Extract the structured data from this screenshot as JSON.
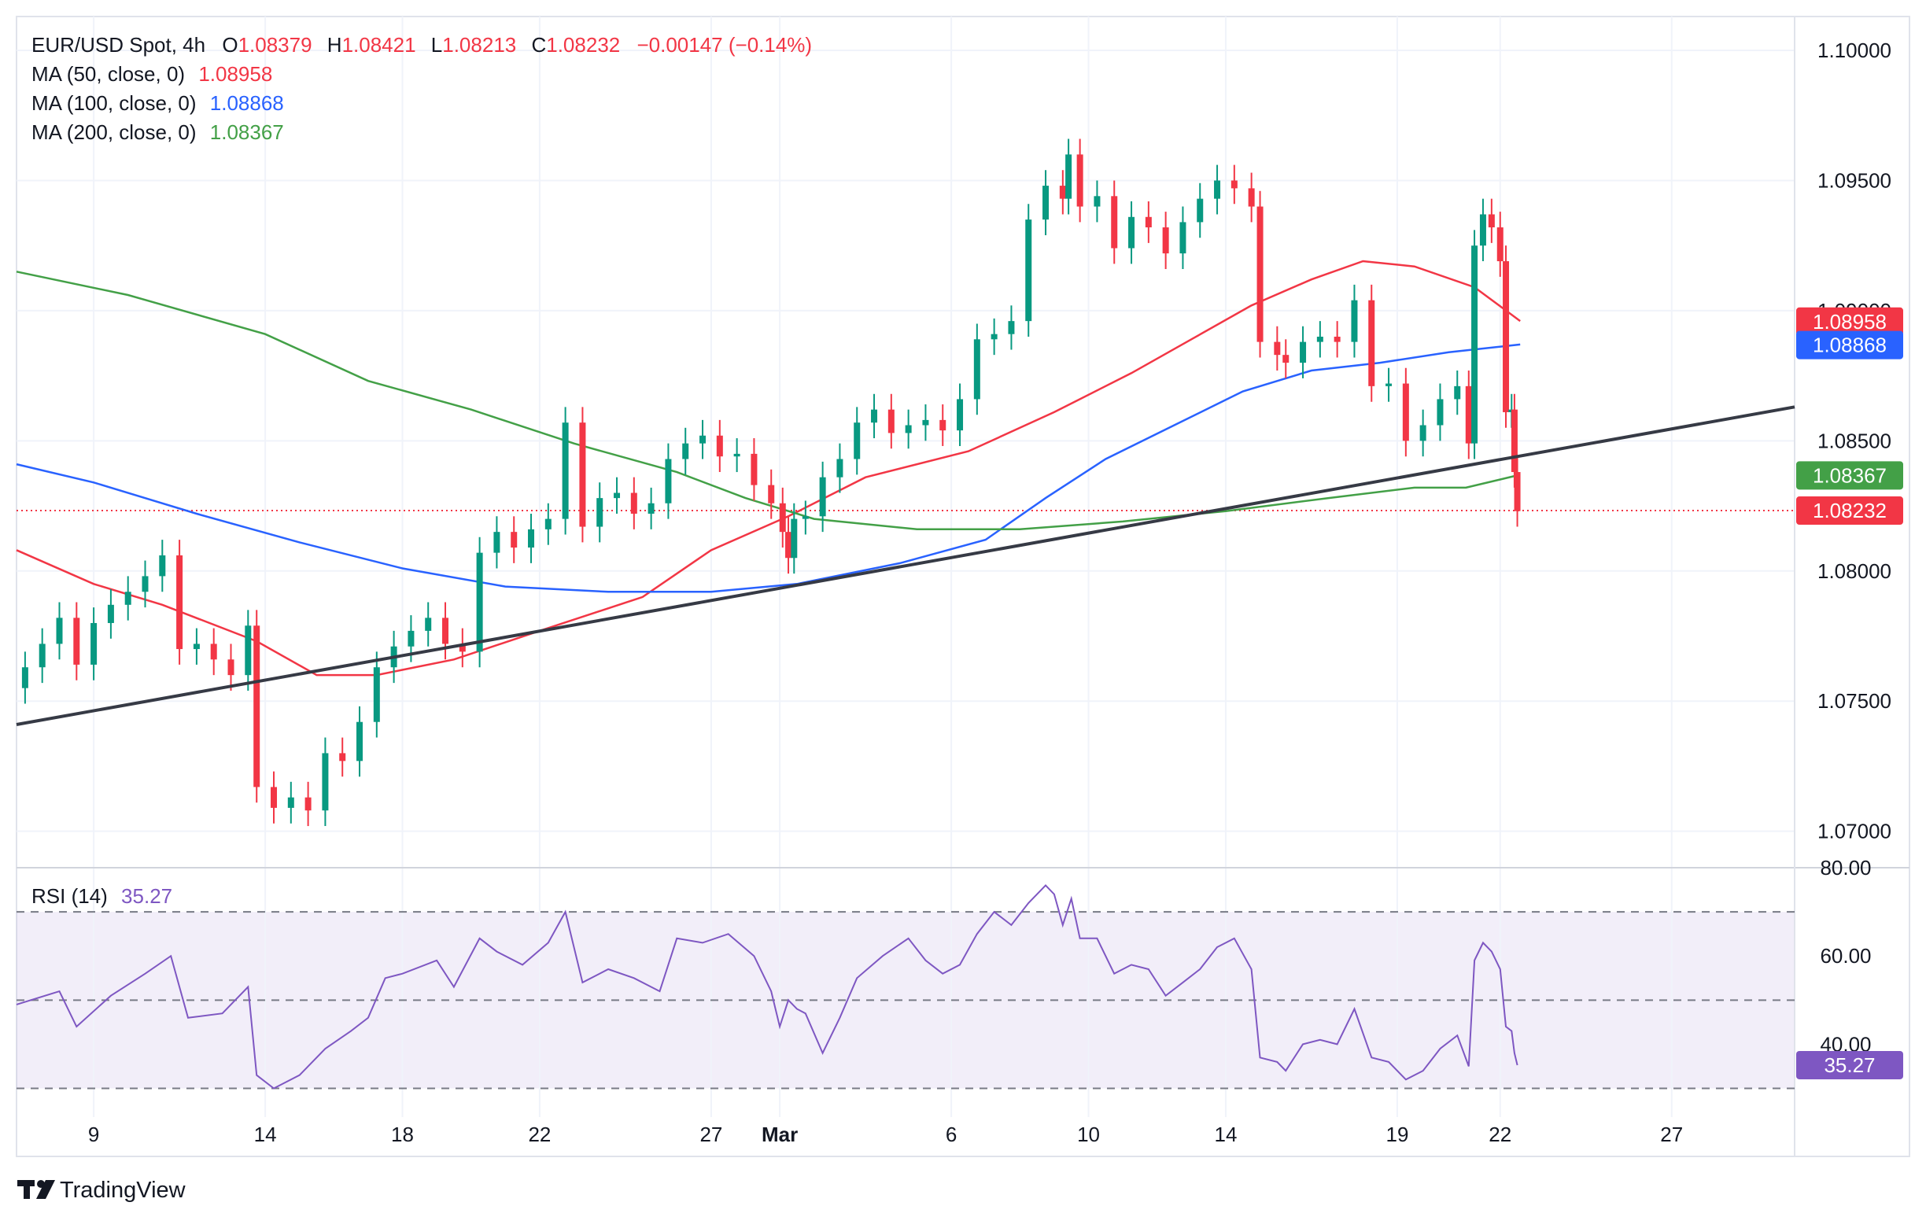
{
  "header": {
    "symbol": "EUR/USD Spot, 4h",
    "o_label": "O",
    "o_value": "1.08379",
    "h_label": "H",
    "h_value": "1.08421",
    "l_label": "L",
    "l_value": "1.08213",
    "c_label": "C",
    "c_value": "1.08232",
    "change": "−0.00147 (−0.14%)",
    "color_down": "#f23645"
  },
  "ma_legend": [
    {
      "label": "MA (50, close, 0)",
      "value": "1.08958",
      "color": "#f23645"
    },
    {
      "label": "MA (100, close, 0)",
      "value": "1.08868",
      "color": "#2962ff"
    },
    {
      "label": "MA (200, close, 0)",
      "value": "1.08367",
      "color": "#43a047"
    }
  ],
  "rsi_legend": {
    "label": "RSI (14)",
    "value": "35.27",
    "color": "#7e57c2"
  },
  "price_badges": [
    {
      "value": "1.08958",
      "price": 1.08958,
      "color": "#f23645"
    },
    {
      "value": "1.08868",
      "price": 1.08868,
      "color": "#2962ff"
    },
    {
      "value": "1.08367",
      "price": 1.08367,
      "color": "#43a047"
    },
    {
      "value": "1.08232",
      "price": 1.08232,
      "color": "#f23645"
    }
  ],
  "rsi_badge": {
    "value": "35.27",
    "rsi": 35.27,
    "color": "#7e57c2"
  },
  "footer": {
    "brand": "TradingView"
  },
  "chart_data": {
    "type": "candlestick",
    "symbol": "EUR/USD Spot",
    "timeframe": "4h",
    "price_axis": {
      "ticks": [
        "1.10000",
        "1.09500",
        "1.09000",
        "1.08500",
        "1.08000",
        "1.07500",
        "1.07000"
      ],
      "tick_values": [
        1.1,
        1.095,
        1.09,
        1.085,
        1.08,
        1.075,
        1.07
      ],
      "range": [
        1.0686,
        1.1013
      ]
    },
    "rsi_axis": {
      "ticks": [
        "80.00",
        "60.00",
        "40.00"
      ],
      "tick_values": [
        80,
        60,
        40
      ],
      "range": [
        23.5,
        80
      ],
      "bands": [
        30,
        50,
        70
      ]
    },
    "time_axis": {
      "labels": [
        "9",
        "14",
        "18",
        "22",
        "27",
        "Mar",
        "6",
        "10",
        "14",
        "19",
        "22",
        "27"
      ],
      "label_dates": [
        "2023-02-09",
        "2023-02-14",
        "2023-02-18",
        "2023-02-22",
        "2023-02-27",
        "2023-03-01",
        "2023-03-06",
        "2023-03-10",
        "2023-03-14",
        "2023-03-19",
        "2023-03-22",
        "2023-03-27"
      ],
      "range": [
        "2023-02-06T18:00",
        "2023-03-30T14:00"
      ]
    },
    "last_price_line": 1.08232,
    "trendline": {
      "from": {
        "t": "2023-02-06T18:00",
        "price": 1.0741
      },
      "to": {
        "t": "2023-03-30T14:00",
        "price": 1.0863
      }
    },
    "close_series": [
      {
        "t": "2023-02-07T00:00",
        "c": 1.0763
      },
      {
        "t": "2023-02-07T12:00",
        "c": 1.0772
      },
      {
        "t": "2023-02-08T00:00",
        "c": 1.0782
      },
      {
        "t": "2023-02-08T12:00",
        "c": 1.0764
      },
      {
        "t": "2023-02-09T00:00",
        "c": 1.078
      },
      {
        "t": "2023-02-09T12:00",
        "c": 1.0787
      },
      {
        "t": "2023-02-10T00:00",
        "c": 1.0792
      },
      {
        "t": "2023-02-10T12:00",
        "c": 1.0798
      },
      {
        "t": "2023-02-11T00:00",
        "c": 1.0806
      },
      {
        "t": "2023-02-11T12:00",
        "c": 1.077
      },
      {
        "t": "2023-02-12T00:00",
        "c": 1.0772
      },
      {
        "t": "2023-02-12T12:00",
        "c": 1.0766
      },
      {
        "t": "2023-02-13T00:00",
        "c": 1.076
      },
      {
        "t": "2023-02-13T12:00",
        "c": 1.0779
      },
      {
        "t": "2023-02-13T18:00",
        "c": 1.0717
      },
      {
        "t": "2023-02-14T06:00",
        "c": 1.0709
      },
      {
        "t": "2023-02-14T18:00",
        "c": 1.0713
      },
      {
        "t": "2023-02-15T06:00",
        "c": 1.0708
      },
      {
        "t": "2023-02-15T18:00",
        "c": 1.073
      },
      {
        "t": "2023-02-16T06:00",
        "c": 1.0727
      },
      {
        "t": "2023-02-16T18:00",
        "c": 1.0742
      },
      {
        "t": "2023-02-17T06:00",
        "c": 1.0763
      },
      {
        "t": "2023-02-17T18:00",
        "c": 1.0771
      },
      {
        "t": "2023-02-18T06:00",
        "c": 1.0777
      },
      {
        "t": "2023-02-18T18:00",
        "c": 1.0782
      },
      {
        "t": "2023-02-19T06:00",
        "c": 1.0772
      },
      {
        "t": "2023-02-19T18:00",
        "c": 1.0769
      },
      {
        "t": "2023-02-20T06:00",
        "c": 1.0807
      },
      {
        "t": "2023-02-20T18:00",
        "c": 1.0815
      },
      {
        "t": "2023-02-21T06:00",
        "c": 1.0809
      },
      {
        "t": "2023-02-21T18:00",
        "c": 1.0816
      },
      {
        "t": "2023-02-22T06:00",
        "c": 1.082
      },
      {
        "t": "2023-02-22T18:00",
        "c": 1.0857
      },
      {
        "t": "2023-02-23T06:00",
        "c": 1.0817
      },
      {
        "t": "2023-02-23T18:00",
        "c": 1.0828
      },
      {
        "t": "2023-02-24T06:00",
        "c": 1.083
      },
      {
        "t": "2023-02-24T18:00",
        "c": 1.0822
      },
      {
        "t": "2023-02-25T06:00",
        "c": 1.0826
      },
      {
        "t": "2023-02-25T18:00",
        "c": 1.0843
      },
      {
        "t": "2023-02-26T06:00",
        "c": 1.0849
      },
      {
        "t": "2023-02-26T18:00",
        "c": 1.0852
      },
      {
        "t": "2023-02-27T06:00",
        "c": 1.0844
      },
      {
        "t": "2023-02-27T18:00",
        "c": 1.0845
      },
      {
        "t": "2023-02-28T06:00",
        "c": 1.0833
      },
      {
        "t": "2023-02-28T18:00",
        "c": 1.0826
      },
      {
        "t": "2023-03-01T02:00",
        "c": 1.0815
      },
      {
        "t": "2023-03-01T06:00",
        "c": 1.0805
      },
      {
        "t": "2023-03-01T10:00",
        "c": 1.082
      },
      {
        "t": "2023-03-01T18:00",
        "c": 1.0821
      },
      {
        "t": "2023-03-02T06:00",
        "c": 1.0836
      },
      {
        "t": "2023-03-02T18:00",
        "c": 1.0843
      },
      {
        "t": "2023-03-03T06:00",
        "c": 1.0857
      },
      {
        "t": "2023-03-03T18:00",
        "c": 1.0862
      },
      {
        "t": "2023-03-04T06:00",
        "c": 1.0853
      },
      {
        "t": "2023-03-04T18:00",
        "c": 1.0856
      },
      {
        "t": "2023-03-05T06:00",
        "c": 1.0858
      },
      {
        "t": "2023-03-05T18:00",
        "c": 1.0854
      },
      {
        "t": "2023-03-06T06:00",
        "c": 1.0866
      },
      {
        "t": "2023-03-06T18:00",
        "c": 1.0889
      },
      {
        "t": "2023-03-07T06:00",
        "c": 1.0891
      },
      {
        "t": "2023-03-07T18:00",
        "c": 1.0896
      },
      {
        "t": "2023-03-08T06:00",
        "c": 1.0935
      },
      {
        "t": "2023-03-08T18:00",
        "c": 1.0948
      },
      {
        "t": "2023-03-09T06:00",
        "c": 1.0943
      },
      {
        "t": "2023-03-09T10:00",
        "c": 1.096
      },
      {
        "t": "2023-03-09T18:00",
        "c": 1.094
      },
      {
        "t": "2023-03-10T06:00",
        "c": 1.0944
      },
      {
        "t": "2023-03-10T18:00",
        "c": 1.0924
      },
      {
        "t": "2023-03-11T06:00",
        "c": 1.0936
      },
      {
        "t": "2023-03-11T18:00",
        "c": 1.0932
      },
      {
        "t": "2023-03-12T06:00",
        "c": 1.0922
      },
      {
        "t": "2023-03-12T18:00",
        "c": 1.0934
      },
      {
        "t": "2023-03-13T06:00",
        "c": 1.0943
      },
      {
        "t": "2023-03-13T18:00",
        "c": 1.095
      },
      {
        "t": "2023-03-14T06:00",
        "c": 1.0947
      },
      {
        "t": "2023-03-14T18:00",
        "c": 1.094
      },
      {
        "t": "2023-03-15T00:00",
        "c": 1.0888
      },
      {
        "t": "2023-03-15T12:00",
        "c": 1.0883
      },
      {
        "t": "2023-03-15T18:00",
        "c": 1.088
      },
      {
        "t": "2023-03-16T06:00",
        "c": 1.0888
      },
      {
        "t": "2023-03-16T18:00",
        "c": 1.089
      },
      {
        "t": "2023-03-17T06:00",
        "c": 1.0888
      },
      {
        "t": "2023-03-17T18:00",
        "c": 1.0904
      },
      {
        "t": "2023-03-18T06:00",
        "c": 1.0871
      },
      {
        "t": "2023-03-18T18:00",
        "c": 1.0872
      },
      {
        "t": "2023-03-19T06:00",
        "c": 1.085
      },
      {
        "t": "2023-03-19T18:00",
        "c": 1.0856
      },
      {
        "t": "2023-03-20T06:00",
        "c": 1.0866
      },
      {
        "t": "2023-03-20T18:00",
        "c": 1.0871
      },
      {
        "t": "2023-03-21T02:00",
        "c": 1.0849
      },
      {
        "t": "2023-03-21T06:00",
        "c": 1.0925
      },
      {
        "t": "2023-03-21T12:00",
        "c": 1.0937
      },
      {
        "t": "2023-03-21T18:00",
        "c": 1.0932
      },
      {
        "t": "2023-03-22T00:00",
        "c": 1.0919
      },
      {
        "t": "2023-03-22T04:00",
        "c": 1.0861
      },
      {
        "t": "2023-03-22T08:00",
        "c": 1.0862
      },
      {
        "t": "2023-03-22T10:00",
        "c": 1.0838
      },
      {
        "t": "2023-03-22T12:00",
        "c": 1.0823
      }
    ],
    "ma_series": {
      "MA 50": [
        {
          "t": "2023-02-06T18:00",
          "v": 1.0808
        },
        {
          "t": "2023-02-09T00:00",
          "v": 1.0795
        },
        {
          "t": "2023-02-11T00:00",
          "v": 1.0787
        },
        {
          "t": "2023-02-13T18:00",
          "v": 1.0773
        },
        {
          "t": "2023-02-15T12:00",
          "v": 1.076
        },
        {
          "t": "2023-02-17T06:00",
          "v": 1.076
        },
        {
          "t": "2023-02-19T12:00",
          "v": 1.0766
        },
        {
          "t": "2023-02-22T00:00",
          "v": 1.0777
        },
        {
          "t": "2023-02-25T00:00",
          "v": 1.079
        },
        {
          "t": "2023-02-27T00:00",
          "v": 1.0808
        },
        {
          "t": "2023-03-01T06:00",
          "v": 1.0821
        },
        {
          "t": "2023-03-03T12:00",
          "v": 1.0836
        },
        {
          "t": "2023-03-06T12:00",
          "v": 1.0846
        },
        {
          "t": "2023-03-09T00:00",
          "v": 1.0861
        },
        {
          "t": "2023-03-11T06:00",
          "v": 1.0876
        },
        {
          "t": "2023-03-13T00:00",
          "v": 1.0889
        },
        {
          "t": "2023-03-14T18:00",
          "v": 1.0902
        },
        {
          "t": "2023-03-16T12:00",
          "v": 1.0912
        },
        {
          "t": "2023-03-18T00:00",
          "v": 1.0919
        },
        {
          "t": "2023-03-19T12:00",
          "v": 1.0917
        },
        {
          "t": "2023-03-21T06:00",
          "v": 1.0909
        },
        {
          "t": "2023-03-22T14:00",
          "v": 1.0896
        }
      ],
      "MA 100": [
        {
          "t": "2023-02-06T18:00",
          "v": 1.0841
        },
        {
          "t": "2023-02-09T00:00",
          "v": 1.0834
        },
        {
          "t": "2023-02-12T00:00",
          "v": 1.0822
        },
        {
          "t": "2023-02-15T00:00",
          "v": 1.0811
        },
        {
          "t": "2023-02-18T00:00",
          "v": 1.0801
        },
        {
          "t": "2023-02-21T00:00",
          "v": 1.0794
        },
        {
          "t": "2023-02-24T00:00",
          "v": 1.0792
        },
        {
          "t": "2023-02-27T00:00",
          "v": 1.0792
        },
        {
          "t": "2023-03-01T12:00",
          "v": 1.0795
        },
        {
          "t": "2023-03-04T12:00",
          "v": 1.0803
        },
        {
          "t": "2023-03-07T00:00",
          "v": 1.0812
        },
        {
          "t": "2023-03-08T18:00",
          "v": 1.0828
        },
        {
          "t": "2023-03-10T12:00",
          "v": 1.0843
        },
        {
          "t": "2023-03-12T12:00",
          "v": 1.0856
        },
        {
          "t": "2023-03-14T12:00",
          "v": 1.0869
        },
        {
          "t": "2023-03-16T12:00",
          "v": 1.0877
        },
        {
          "t": "2023-03-18T12:00",
          "v": 1.088
        },
        {
          "t": "2023-03-20T12:00",
          "v": 1.0884
        },
        {
          "t": "2023-03-22T14:00",
          "v": 1.0887
        }
      ],
      "MA 200": [
        {
          "t": "2023-02-06T18:00",
          "v": 1.0915
        },
        {
          "t": "2023-02-10T00:00",
          "v": 1.0906
        },
        {
          "t": "2023-02-14T00:00",
          "v": 1.0891
        },
        {
          "t": "2023-02-17T00:00",
          "v": 1.0873
        },
        {
          "t": "2023-02-20T00:00",
          "v": 1.0862
        },
        {
          "t": "2023-02-23T00:00",
          "v": 1.0849
        },
        {
          "t": "2023-02-26T00:00",
          "v": 1.0838
        },
        {
          "t": "2023-02-28T00:00",
          "v": 1.0828
        },
        {
          "t": "2023-03-02T00:00",
          "v": 1.082
        },
        {
          "t": "2023-03-05T00:00",
          "v": 1.0816
        },
        {
          "t": "2023-03-08T00:00",
          "v": 1.0816
        },
        {
          "t": "2023-03-11T00:00",
          "v": 1.0819
        },
        {
          "t": "2023-03-14T00:00",
          "v": 1.0823
        },
        {
          "t": "2023-03-17T00:00",
          "v": 1.0828
        },
        {
          "t": "2023-03-19T12:00",
          "v": 1.0832
        },
        {
          "t": "2023-03-21T00:00",
          "v": 1.0832
        },
        {
          "t": "2023-03-22T14:00",
          "v": 1.0837
        }
      ]
    },
    "rsi_series": [
      {
        "t": "2023-02-06T18:00",
        "v": 49
      },
      {
        "t": "2023-02-08T00:00",
        "v": 52
      },
      {
        "t": "2023-02-08T12:00",
        "v": 44
      },
      {
        "t": "2023-02-09T12:00",
        "v": 51
      },
      {
        "t": "2023-02-10T12:00",
        "v": 56
      },
      {
        "t": "2023-02-11T06:00",
        "v": 60
      },
      {
        "t": "2023-02-11T18:00",
        "v": 46
      },
      {
        "t": "2023-02-12T18:00",
        "v": 47
      },
      {
        "t": "2023-02-13T12:00",
        "v": 53
      },
      {
        "t": "2023-02-13T18:00",
        "v": 33
      },
      {
        "t": "2023-02-14T06:00",
        "v": 30
      },
      {
        "t": "2023-02-15T00:00",
        "v": 33
      },
      {
        "t": "2023-02-15T18:00",
        "v": 39
      },
      {
        "t": "2023-02-16T12:00",
        "v": 43
      },
      {
        "t": "2023-02-17T00:00",
        "v": 46
      },
      {
        "t": "2023-02-17T12:00",
        "v": 55
      },
      {
        "t": "2023-02-18T00:00",
        "v": 56
      },
      {
        "t": "2023-02-19T00:00",
        "v": 59
      },
      {
        "t": "2023-02-19T12:00",
        "v": 53
      },
      {
        "t": "2023-02-20T06:00",
        "v": 64
      },
      {
        "t": "2023-02-20T18:00",
        "v": 61
      },
      {
        "t": "2023-02-21T12:00",
        "v": 58
      },
      {
        "t": "2023-02-22T06:00",
        "v": 63
      },
      {
        "t": "2023-02-22T18:00",
        "v": 70
      },
      {
        "t": "2023-02-23T06:00",
        "v": 54
      },
      {
        "t": "2023-02-24T00:00",
        "v": 57
      },
      {
        "t": "2023-02-24T18:00",
        "v": 55
      },
      {
        "t": "2023-02-25T12:00",
        "v": 52
      },
      {
        "t": "2023-02-26T00:00",
        "v": 64
      },
      {
        "t": "2023-02-26T18:00",
        "v": 63
      },
      {
        "t": "2023-02-27T12:00",
        "v": 65
      },
      {
        "t": "2023-02-28T06:00",
        "v": 60
      },
      {
        "t": "2023-02-28T18:00",
        "v": 52
      },
      {
        "t": "2023-03-01T00:00",
        "v": 44
      },
      {
        "t": "2023-03-01T06:00",
        "v": 50
      },
      {
        "t": "2023-03-01T12:00",
        "v": 48
      },
      {
        "t": "2023-03-01T18:00",
        "v": 47
      },
      {
        "t": "2023-03-02T06:00",
        "v": 38
      },
      {
        "t": "2023-03-02T18:00",
        "v": 46
      },
      {
        "t": "2023-03-03T06:00",
        "v": 55
      },
      {
        "t": "2023-03-04T00:00",
        "v": 60
      },
      {
        "t": "2023-03-04T18:00",
        "v": 64
      },
      {
        "t": "2023-03-05T06:00",
        "v": 59
      },
      {
        "t": "2023-03-05T18:00",
        "v": 56
      },
      {
        "t": "2023-03-06T06:00",
        "v": 58
      },
      {
        "t": "2023-03-06T18:00",
        "v": 65
      },
      {
        "t": "2023-03-07T06:00",
        "v": 70
      },
      {
        "t": "2023-03-07T18:00",
        "v": 67
      },
      {
        "t": "2023-03-08T06:00",
        "v": 72
      },
      {
        "t": "2023-03-08T18:00",
        "v": 76
      },
      {
        "t": "2023-03-09T00:00",
        "v": 74
      },
      {
        "t": "2023-03-09T06:00",
        "v": 67
      },
      {
        "t": "2023-03-09T12:00",
        "v": 73
      },
      {
        "t": "2023-03-09T18:00",
        "v": 64
      },
      {
        "t": "2023-03-10T06:00",
        "v": 64
      },
      {
        "t": "2023-03-10T18:00",
        "v": 56
      },
      {
        "t": "2023-03-11T06:00",
        "v": 58
      },
      {
        "t": "2023-03-11T18:00",
        "v": 57
      },
      {
        "t": "2023-03-12T06:00",
        "v": 51
      },
      {
        "t": "2023-03-12T18:00",
        "v": 54
      },
      {
        "t": "2023-03-13T06:00",
        "v": 57
      },
      {
        "t": "2023-03-13T18:00",
        "v": 62
      },
      {
        "t": "2023-03-14T06:00",
        "v": 64
      },
      {
        "t": "2023-03-14T18:00",
        "v": 57
      },
      {
        "t": "2023-03-15T00:00",
        "v": 37
      },
      {
        "t": "2023-03-15T12:00",
        "v": 36
      },
      {
        "t": "2023-03-15T18:00",
        "v": 34
      },
      {
        "t": "2023-03-16T06:00",
        "v": 40
      },
      {
        "t": "2023-03-16T18:00",
        "v": 41
      },
      {
        "t": "2023-03-17T06:00",
        "v": 40
      },
      {
        "t": "2023-03-17T18:00",
        "v": 48
      },
      {
        "t": "2023-03-18T06:00",
        "v": 37
      },
      {
        "t": "2023-03-18T18:00",
        "v": 36
      },
      {
        "t": "2023-03-19T06:00",
        "v": 32
      },
      {
        "t": "2023-03-19T18:00",
        "v": 34
      },
      {
        "t": "2023-03-20T06:00",
        "v": 39
      },
      {
        "t": "2023-03-20T18:00",
        "v": 42
      },
      {
        "t": "2023-03-21T02:00",
        "v": 35
      },
      {
        "t": "2023-03-21T06:00",
        "v": 59
      },
      {
        "t": "2023-03-21T12:00",
        "v": 63
      },
      {
        "t": "2023-03-21T18:00",
        "v": 61
      },
      {
        "t": "2023-03-22T00:00",
        "v": 57
      },
      {
        "t": "2023-03-22T04:00",
        "v": 44
      },
      {
        "t": "2023-03-22T08:00",
        "v": 43
      },
      {
        "t": "2023-03-22T10:00",
        "v": 38
      },
      {
        "t": "2023-03-22T12:00",
        "v": 35.27
      }
    ]
  }
}
